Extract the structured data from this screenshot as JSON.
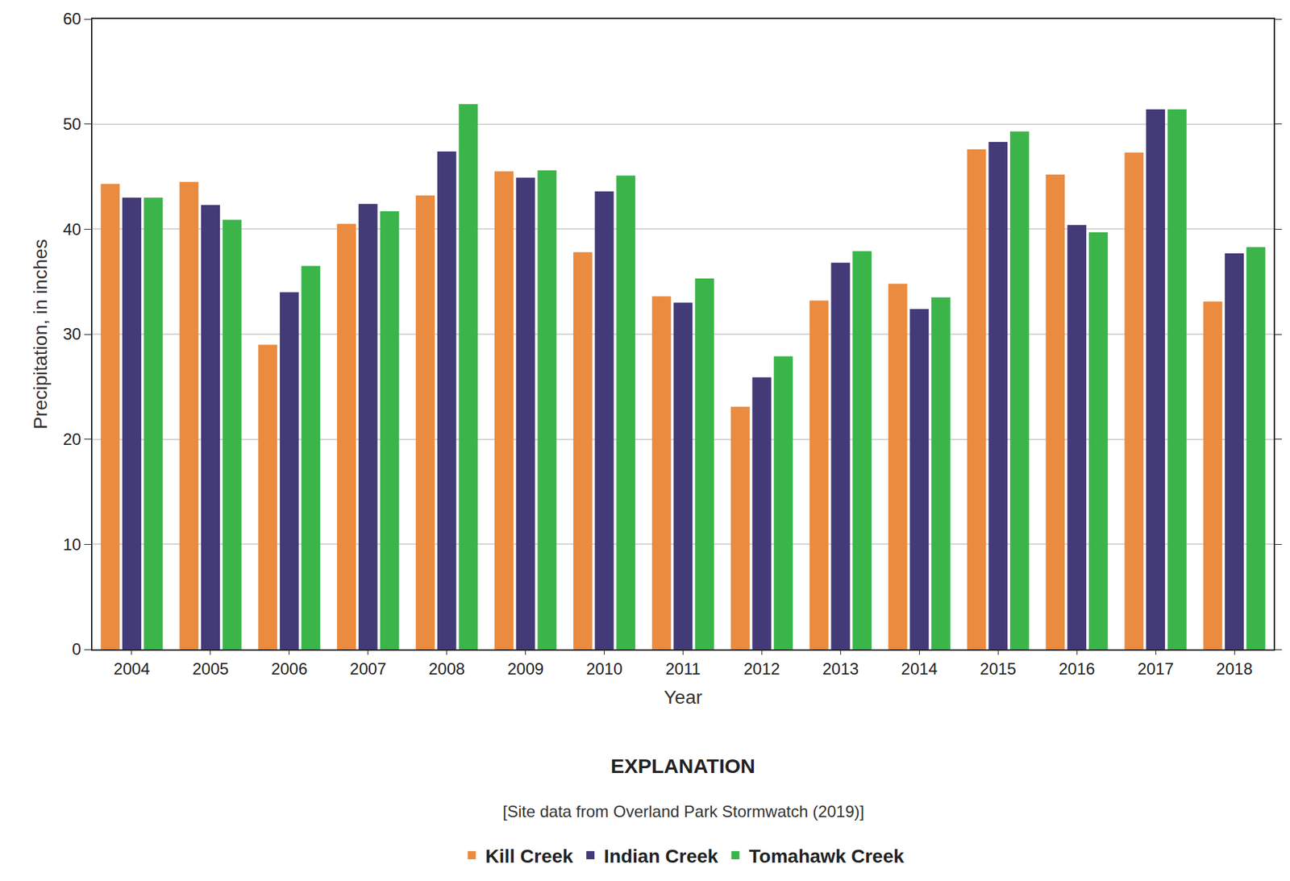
{
  "chart_data": {
    "type": "bar",
    "x_label": "Year",
    "y_label": "Precipitation, in inches",
    "legend_title": "EXPLANATION",
    "annotations": [
      "[Site data from Overland Park Stormwatch (2019)]"
    ],
    "categories": [
      "2004",
      "2005",
      "2006",
      "2007",
      "2008",
      "2009",
      "2010",
      "2011",
      "2012",
      "2013",
      "2014",
      "2015",
      "2016",
      "2017",
      "2018"
    ],
    "series": [
      {
        "name": "Kill Creek",
        "color": "#eb8b3f",
        "values": [
          44.3,
          44.5,
          29.0,
          40.5,
          43.2,
          45.5,
          37.8,
          33.6,
          23.1,
          33.2,
          34.8,
          47.6,
          45.2,
          47.3,
          33.1
        ]
      },
      {
        "name": "Indian Creek",
        "color": "#433a78",
        "values": [
          43.0,
          42.3,
          34.0,
          42.4,
          47.4,
          44.9,
          43.6,
          33.0,
          25.9,
          36.8,
          32.4,
          48.3,
          40.4,
          51.4,
          37.7
        ]
      },
      {
        "name": "Tomahawk Creek",
        "color": "#3bb54a",
        "values": [
          43.0,
          40.9,
          36.5,
          41.7,
          51.9,
          45.6,
          45.1,
          35.3,
          27.9,
          37.9,
          33.5,
          49.3,
          39.7,
          51.4,
          38.3
        ]
      }
    ],
    "ylim": [
      0,
      60
    ],
    "yticks": [
      0,
      10,
      20,
      30,
      40,
      50,
      60
    ],
    "grid": true,
    "legend": "bottom"
  }
}
